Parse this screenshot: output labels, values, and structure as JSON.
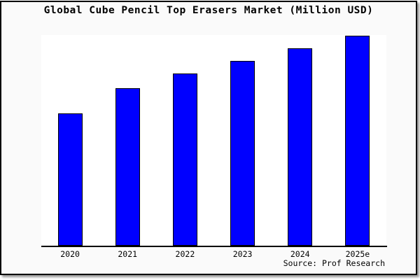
{
  "title": "Global Cube Pencil Top Erasers Market (Million USD)",
  "source": "Source: Prof Research",
  "colors": {
    "bar_fill": "#0000ff",
    "bar_border": "#000000",
    "axis": "#000000",
    "page_bg": "#fafafa",
    "plot_bg": "#ffffff",
    "frame_border": "#000000"
  },
  "chart_data": {
    "type": "bar",
    "title": "Global Cube Pencil Top Erasers Market (Million USD)",
    "categories": [
      "2020",
      "2021",
      "2022",
      "2023",
      "2024",
      "2025e"
    ],
    "values": [
      63,
      75,
      82,
      88,
      94,
      100
    ],
    "values_note": "No y-axis scale or data labels are shown in the image; values are relative bar heights normalized so 2025e = 100",
    "xlabel": "",
    "ylabel": "",
    "ylim": [
      0,
      100
    ],
    "grid": false,
    "legend": null,
    "bar_color": "#0000ff",
    "annotations": [
      "Source: Prof Research"
    ]
  }
}
